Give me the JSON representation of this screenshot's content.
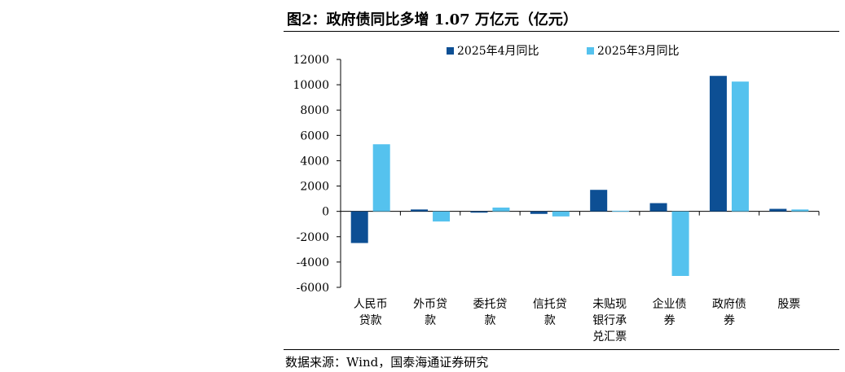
{
  "title": "图2：政府债同比多增 1.07 万亿元（亿元）",
  "source": "数据来源：Wind，国泰海通证券研究",
  "colors": {
    "series1": "#0d4f94",
    "series2": "#55c2ee"
  },
  "chart_data": {
    "type": "bar",
    "categories": [
      [
        "人民币",
        "贷款"
      ],
      [
        "外币贷",
        "款"
      ],
      [
        "委托贷",
        "款"
      ],
      [
        "信托贷",
        "款"
      ],
      [
        "未贴现",
        "银行承",
        "兑汇票"
      ],
      [
        "企业债",
        "券"
      ],
      [
        "政府债",
        "券"
      ],
      [
        "股票"
      ]
    ],
    "series": [
      {
        "name": "2025年4月同比",
        "values": [
          -2500,
          150,
          -100,
          -200,
          1700,
          650,
          10700,
          200
        ]
      },
      {
        "name": "2025年3月同比",
        "values": [
          5300,
          -800,
          300,
          -400,
          50,
          -5100,
          10250,
          150
        ]
      }
    ],
    "ylim": [
      -6000,
      12000
    ],
    "yticks": [
      -6000,
      -4000,
      -2000,
      0,
      2000,
      4000,
      6000,
      8000,
      10000,
      12000
    ],
    "legend_position": "top",
    "grid": false
  }
}
